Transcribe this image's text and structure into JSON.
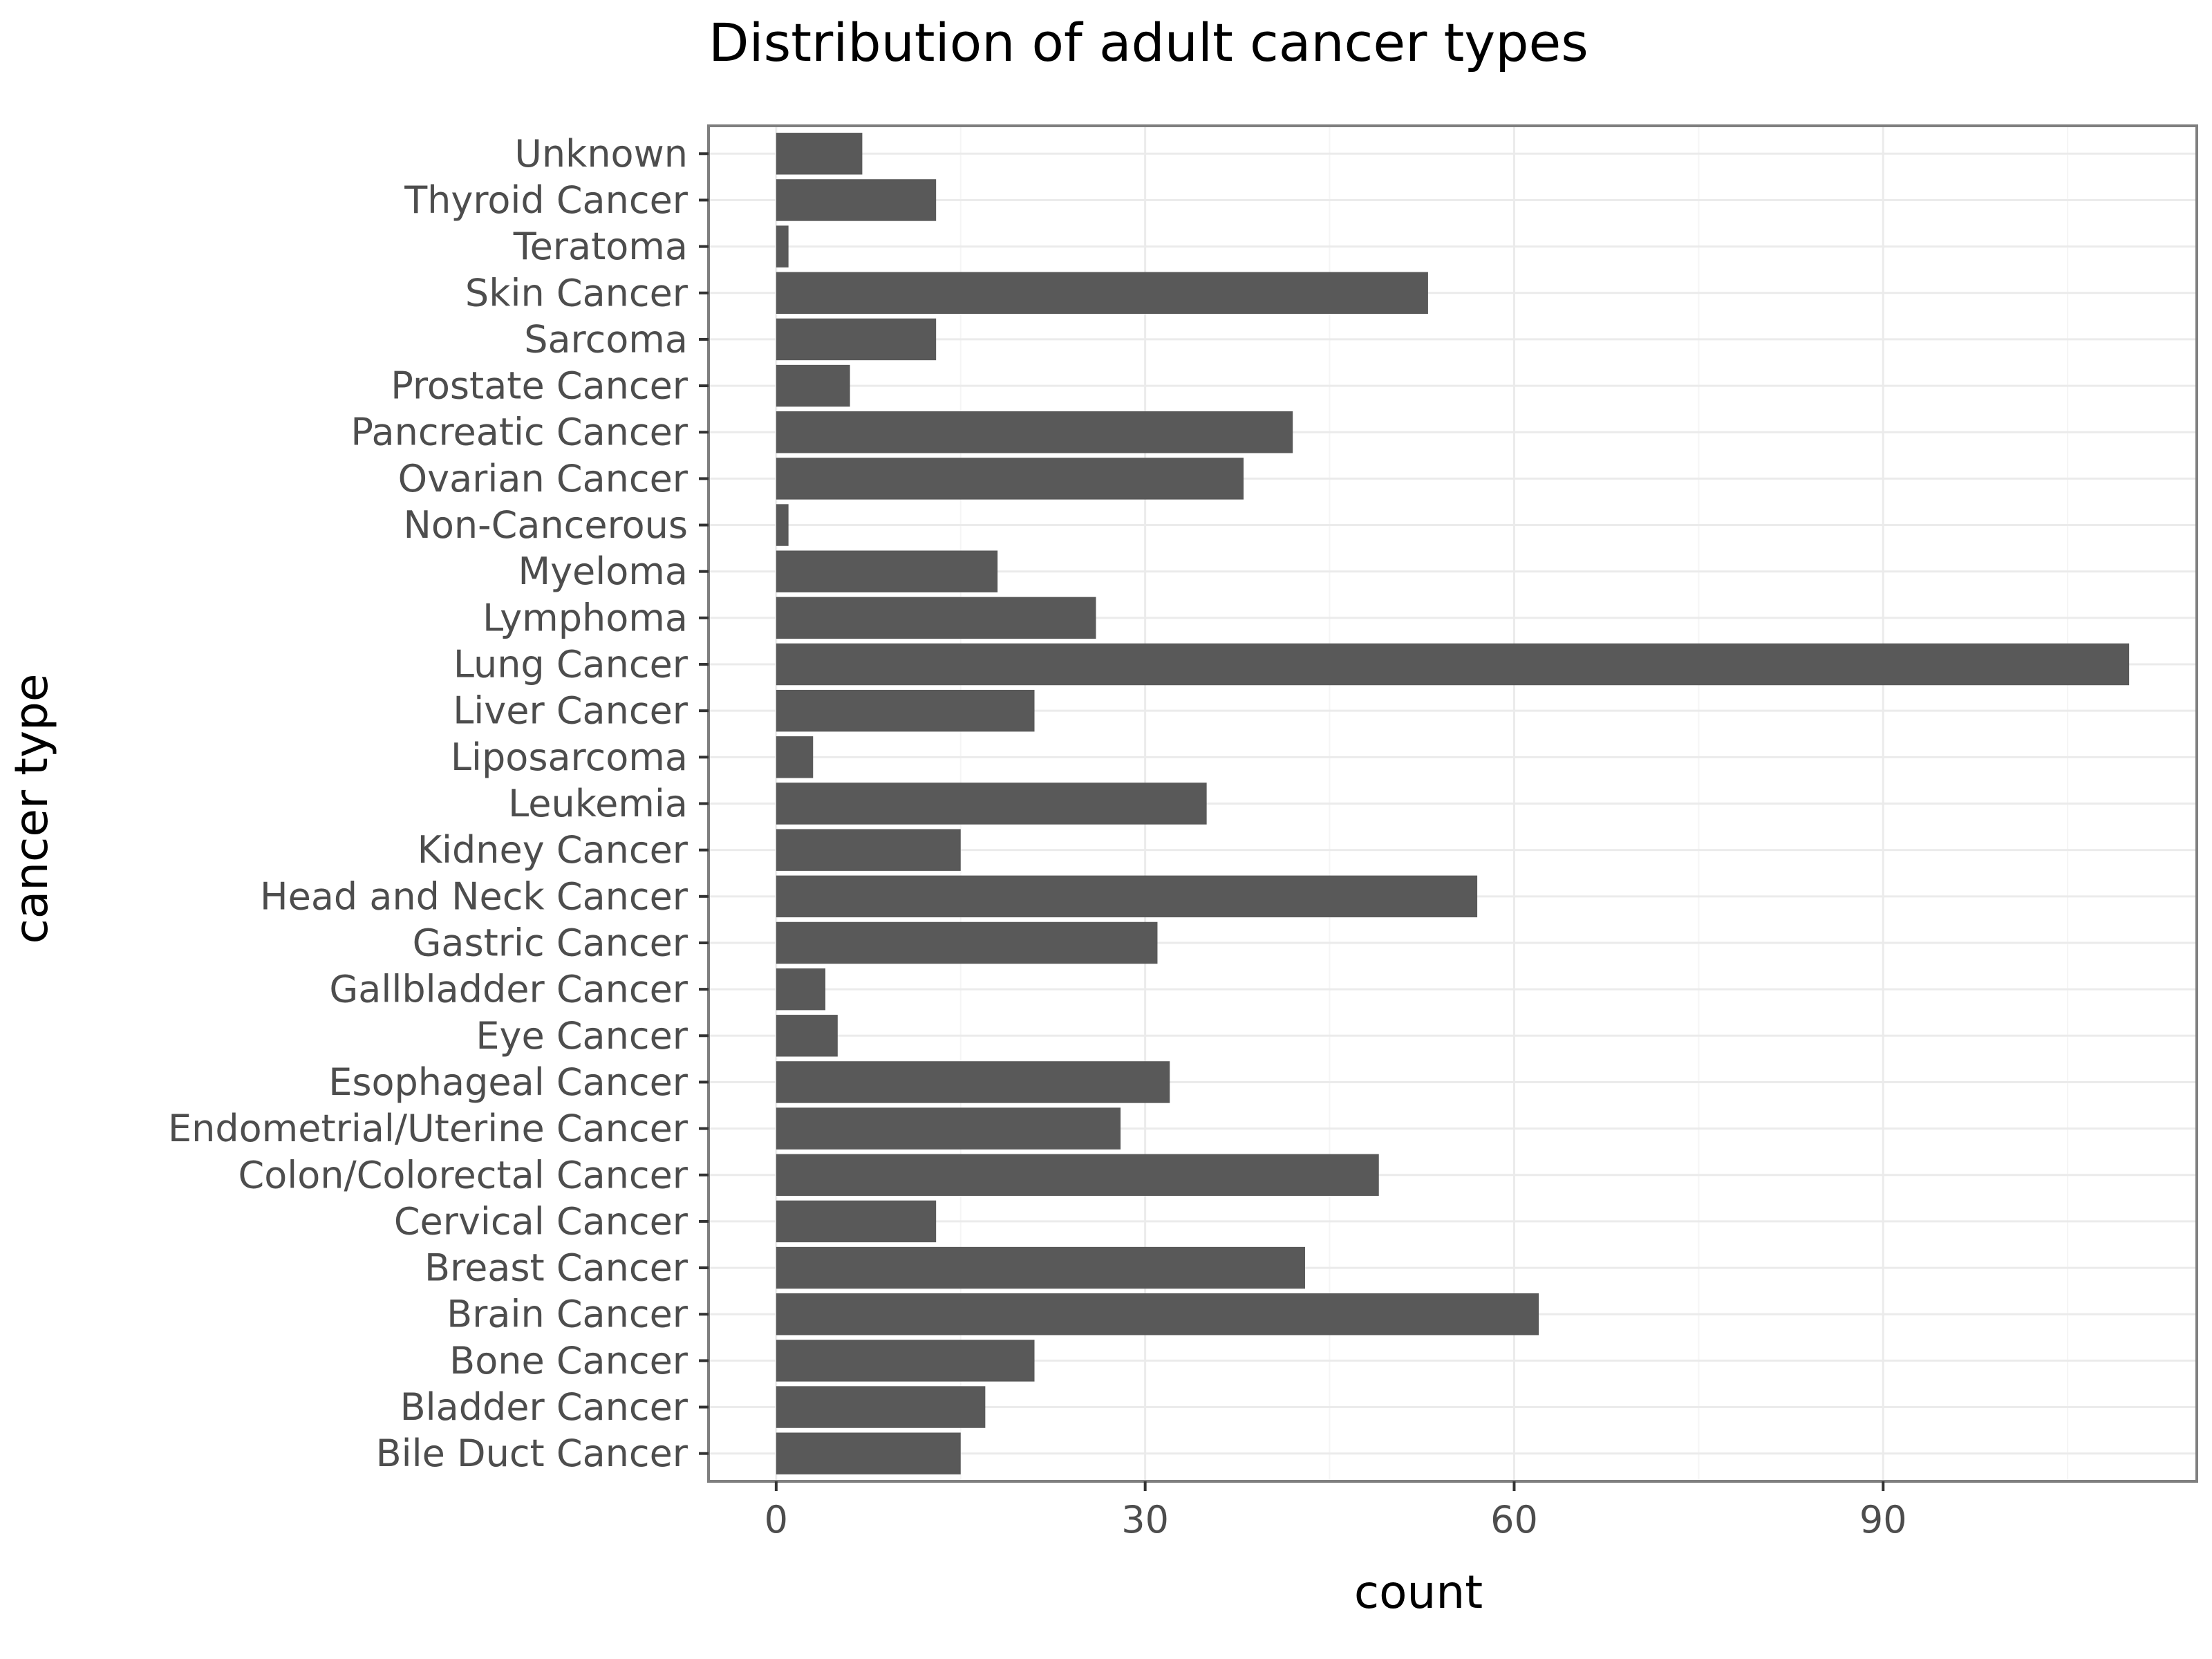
{
  "chart_data": {
    "type": "bar",
    "orientation": "horizontal",
    "title": "Distribution of adult cancer types",
    "xlabel": "count",
    "ylabel": "cancer type",
    "xlim": [
      -5.5,
      115.5
    ],
    "xticks": [
      0,
      30,
      60,
      90
    ],
    "xtick_labels": [
      "0",
      "30",
      "60",
      "90"
    ],
    "grid": true,
    "legend": "none",
    "categories": [
      "Bile Duct Cancer",
      "Bladder Cancer",
      "Bone Cancer",
      "Brain Cancer",
      "Breast Cancer",
      "Cervical Cancer",
      "Colon/Colorectal Cancer",
      "Endometrial/Uterine Cancer",
      "Esophageal Cancer",
      "Eye Cancer",
      "Gallbladder Cancer",
      "Gastric Cancer",
      "Head and Neck Cancer",
      "Kidney Cancer",
      "Leukemia",
      "Liposarcoma",
      "Liver Cancer",
      "Lung Cancer",
      "Lymphoma",
      "Myeloma",
      "Non-Cancerous",
      "Ovarian Cancer",
      "Pancreatic Cancer",
      "Prostate Cancer",
      "Sarcoma",
      "Skin Cancer",
      "Teratoma",
      "Thyroid Cancer",
      "Unknown"
    ],
    "values": [
      15,
      17,
      21,
      62,
      43,
      13,
      49,
      28,
      32,
      5,
      4,
      31,
      57,
      15,
      35,
      3,
      21,
      110,
      26,
      18,
      1,
      38,
      42,
      6,
      13,
      53,
      1,
      13,
      7
    ],
    "colors": {
      "bar": "#595959",
      "panel_background": "#ffffff",
      "panel_border": "#7f7f7f",
      "grid_major": "#ebebeb",
      "grid_minor": "#f5f5f5",
      "tick_text": "#4d4d4d",
      "title_text": "#000000"
    }
  }
}
